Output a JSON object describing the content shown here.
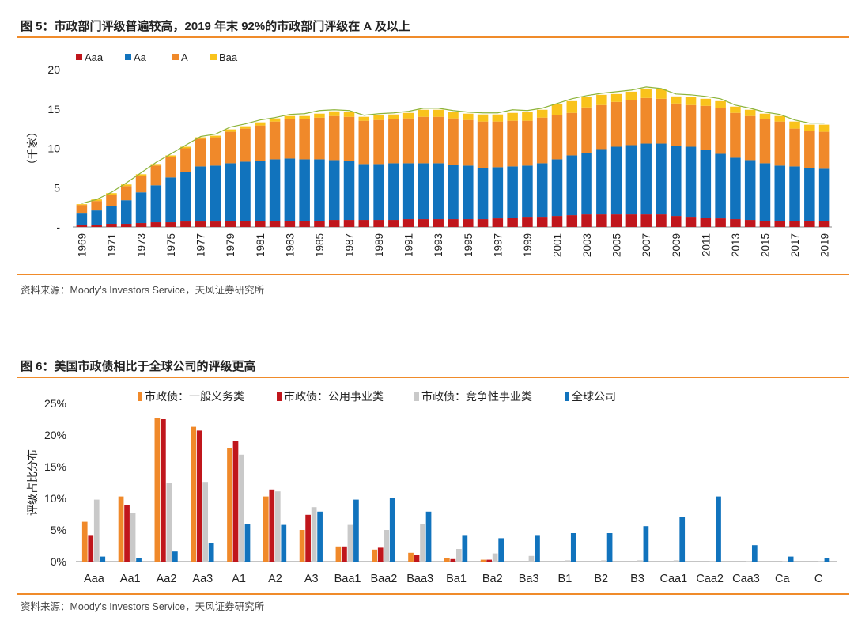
{
  "colors": {
    "accent": "#f08b2a",
    "aaa": "#c0161c",
    "aa": "#1173bd",
    "a": "#f0892a",
    "baa": "#f9c31b",
    "gray": "#c9c9c9"
  },
  "fig1": {
    "title": "图 5：市政部门评级普遍较高，2019 年末 92%的市政部门评级在 A 及以上",
    "source": "资料来源：Moody’s Investors Service，天风证券研究所"
  },
  "fig2": {
    "title": "图 6：美国市政债相比于全球公司的评级更高",
    "source": "资料来源：Moody’s Investors Service，天风证券研究所"
  },
  "chart_data": [
    {
      "type": "bar",
      "stacked": true,
      "title": "",
      "ylabel": "（千家）",
      "ylim": [
        0,
        20
      ],
      "yticks": [
        0,
        5,
        10,
        15,
        20
      ],
      "ytick_labels": [
        "-",
        "5",
        "10",
        "15",
        "20"
      ],
      "categories": [
        "1969",
        "1970",
        "1971",
        "1972",
        "1973",
        "1974",
        "1975",
        "1976",
        "1977",
        "1978",
        "1979",
        "1980",
        "1981",
        "1982",
        "1983",
        "1984",
        "1985",
        "1986",
        "1987",
        "1988",
        "1989",
        "1990",
        "1991",
        "1992",
        "1993",
        "1994",
        "1995",
        "1996",
        "1997",
        "1998",
        "1999",
        "2000",
        "2001",
        "2002",
        "2003",
        "2004",
        "2005",
        "2006",
        "2007",
        "2008",
        "2009",
        "2010",
        "2011",
        "2012",
        "2013",
        "2014",
        "2015",
        "2016",
        "2017",
        "2018",
        "2019"
      ],
      "xtick_labels": [
        "1969",
        "1971",
        "1973",
        "1975",
        "1977",
        "1979",
        "1981",
        "1983",
        "1985",
        "1987",
        "1989",
        "1991",
        "1993",
        "1995",
        "1997",
        "1999",
        "2001",
        "2003",
        "2005",
        "2007",
        "2009",
        "2011",
        "2013",
        "2015",
        "2017",
        "2019"
      ],
      "legend": [
        "Aaa",
        "Aa",
        "A",
        "Baa"
      ],
      "series": [
        {
          "name": "Aaa",
          "values": [
            0.3,
            0.3,
            0.4,
            0.4,
            0.5,
            0.6,
            0.6,
            0.7,
            0.7,
            0.7,
            0.8,
            0.8,
            0.8,
            0.8,
            0.8,
            0.8,
            0.8,
            0.9,
            0.9,
            0.9,
            0.9,
            0.9,
            1.0,
            1.0,
            1.0,
            1.0,
            1.0,
            1.0,
            1.1,
            1.2,
            1.3,
            1.3,
            1.4,
            1.5,
            1.6,
            1.6,
            1.6,
            1.6,
            1.6,
            1.6,
            1.4,
            1.3,
            1.2,
            1.1,
            1.0,
            0.9,
            0.8,
            0.8,
            0.8,
            0.8,
            0.8
          ]
        },
        {
          "name": "Aa",
          "values": [
            1.5,
            1.8,
            2.3,
            3.0,
            3.9,
            4.7,
            5.7,
            6.3,
            7.0,
            7.1,
            7.3,
            7.5,
            7.6,
            7.8,
            7.9,
            7.8,
            7.8,
            7.6,
            7.5,
            7.1,
            7.1,
            7.2,
            7.1,
            7.1,
            7.1,
            6.9,
            6.8,
            6.5,
            6.5,
            6.5,
            6.5,
            6.8,
            7.2,
            7.6,
            7.8,
            8.3,
            8.6,
            8.8,
            9.0,
            9.0,
            8.9,
            8.9,
            8.6,
            8.2,
            7.8,
            7.6,
            7.3,
            7.0,
            6.9,
            6.7,
            6.6
          ]
        },
        {
          "name": "A",
          "values": [
            1.0,
            1.2,
            1.4,
            1.8,
            2.1,
            2.5,
            2.6,
            3.0,
            3.5,
            3.6,
            4.0,
            4.2,
            4.5,
            4.8,
            5.0,
            5.1,
            5.3,
            5.6,
            5.6,
            5.5,
            5.6,
            5.6,
            5.7,
            5.9,
            5.9,
            5.9,
            5.8,
            5.9,
            5.8,
            5.8,
            5.7,
            5.8,
            5.6,
            5.4,
            5.8,
            5.6,
            5.7,
            5.7,
            5.8,
            5.7,
            5.4,
            5.3,
            5.6,
            5.8,
            5.7,
            5.6,
            5.6,
            5.6,
            4.8,
            4.7,
            4.7
          ]
        },
        {
          "name": "Baa",
          "values": [
            0.1,
            0.2,
            0.2,
            0.2,
            0.2,
            0.2,
            0.2,
            0.2,
            0.2,
            0.2,
            0.3,
            0.3,
            0.4,
            0.4,
            0.4,
            0.4,
            0.5,
            0.6,
            0.6,
            0.5,
            0.6,
            0.6,
            0.7,
            0.9,
            0.9,
            0.8,
            0.8,
            0.9,
            0.9,
            1.0,
            1.1,
            1.0,
            1.4,
            1.5,
            1.3,
            1.3,
            1.0,
            1.1,
            1.2,
            1.2,
            0.9,
            1.0,
            0.9,
            0.9,
            0.8,
            0.8,
            0.7,
            0.7,
            0.9,
            0.8,
            0.9
          ]
        }
      ],
      "total_line": [
        3.0,
        3.5,
        4.4,
        5.6,
        6.9,
        8.2,
        9.3,
        10.4,
        11.5,
        11.8,
        12.7,
        13.1,
        13.6,
        13.9,
        14.3,
        14.4,
        14.8,
        14.9,
        14.8,
        14.2,
        14.4,
        14.5,
        14.7,
        15.1,
        15.1,
        14.8,
        14.6,
        14.5,
        14.5,
        14.9,
        14.8,
        15.1,
        15.7,
        16.3,
        16.7,
        17.0,
        17.2,
        17.4,
        17.8,
        17.6,
        16.9,
        16.8,
        16.6,
        16.3,
        15.5,
        15.1,
        14.6,
        14.3,
        13.6,
        13.2,
        13.2
      ]
    },
    {
      "type": "bar",
      "title": "",
      "ylabel": "评级占比分布",
      "ylim": [
        0,
        25
      ],
      "yticks": [
        0,
        5,
        10,
        15,
        20,
        25
      ],
      "ytick_labels": [
        "0%",
        "5%",
        "10%",
        "15%",
        "20%",
        "25%"
      ],
      "categories": [
        "Aaa",
        "Aa1",
        "Aa2",
        "Aa3",
        "A1",
        "A2",
        "A3",
        "Baa1",
        "Baa2",
        "Baa3",
        "Ba1",
        "Ba2",
        "Ba3",
        "B1",
        "B2",
        "B3",
        "Caa1",
        "Caa2",
        "Caa3",
        "Ca",
        "C"
      ],
      "series": [
        {
          "name": "市政债：一般义务类",
          "values": [
            6.3,
            10.3,
            22.7,
            21.3,
            18.0,
            10.3,
            5.0,
            2.4,
            1.9,
            1.4,
            0.6,
            0.3,
            0,
            0,
            0,
            0,
            0,
            0,
            0,
            0,
            0
          ]
        },
        {
          "name": "市政债：公用事业类",
          "values": [
            4.2,
            8.9,
            22.5,
            20.7,
            19.1,
            11.4,
            7.4,
            2.4,
            2.2,
            1.0,
            0.4,
            0.3,
            0,
            0,
            0,
            0,
            0,
            0,
            0,
            0,
            0
          ]
        },
        {
          "name": "市政债：竞争性事业类",
          "values": [
            9.8,
            7.7,
            12.4,
            12.6,
            16.9,
            11.1,
            8.6,
            5.8,
            5.0,
            6.0,
            2.0,
            1.3,
            0.9,
            0.2,
            0.2,
            0.2,
            0.2,
            0.1,
            0.1,
            0.1,
            0.1
          ]
        },
        {
          "name": "全球公司",
          "values": [
            0.8,
            0.6,
            1.6,
            2.9,
            6.0,
            5.8,
            7.9,
            9.8,
            10.0,
            7.9,
            4.2,
            3.7,
            4.2,
            4.5,
            4.5,
            5.6,
            7.1,
            10.3,
            2.6,
            0.8,
            0.5
          ]
        }
      ]
    }
  ]
}
